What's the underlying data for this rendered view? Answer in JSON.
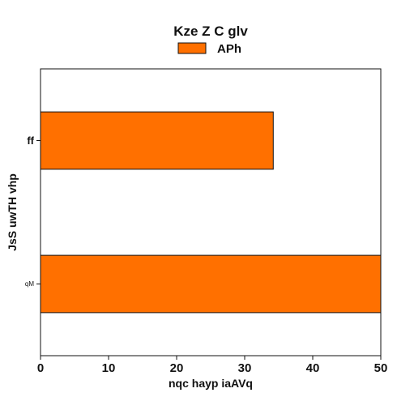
{
  "chart_data": {
    "type": "bar",
    "orientation": "horizontal",
    "title": "Kze  Z C glv",
    "xlabel": "nqc hayp iaAVq",
    "ylabel": "JsS  uwTH vhp",
    "categories": [
      "ff",
      "qM"
    ],
    "category_font_sizes": [
      13,
      8
    ],
    "series": [
      {
        "name": "APh",
        "values": [
          34.2,
          50.0
        ],
        "color": "#ff7000"
      }
    ],
    "xlim": [
      0,
      50
    ],
    "xticks": [
      0,
      10,
      20,
      30,
      40,
      50
    ],
    "grid": false,
    "legend_position": "top-center"
  }
}
